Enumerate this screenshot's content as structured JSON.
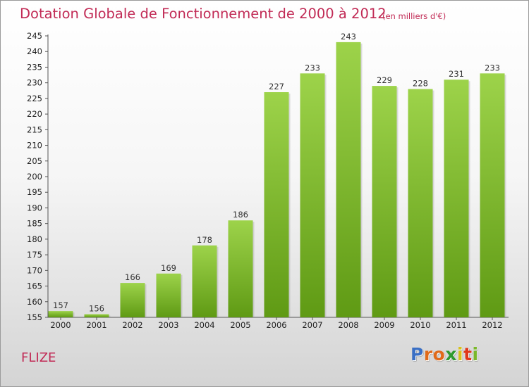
{
  "title": "Dotation Globale de Fonctionnement de 2000 à 2012",
  "subtitle": "(en milliers d'€)",
  "commune": "FLIZE",
  "logo": {
    "letters": [
      "P",
      "r",
      "o",
      "x",
      "i",
      "t",
      "i"
    ],
    "colors": [
      "#3a6fc4",
      "#e06a1a",
      "#e06a1a",
      "#2f9a2f",
      "#d8c21a",
      "#e0371a",
      "#7ab82a"
    ]
  },
  "colors": {
    "title": "#c12a55",
    "bar": "#8cc63f",
    "bar_dark": "#6a9f1f"
  },
  "chart_data": {
    "type": "bar",
    "categories": [
      "2000",
      "2001",
      "2002",
      "2003",
      "2004",
      "2005",
      "2006",
      "2007",
      "2008",
      "2009",
      "2010",
      "2011",
      "2012"
    ],
    "values": [
      157,
      156,
      166,
      169,
      178,
      186,
      227,
      233,
      243,
      229,
      228,
      231,
      233
    ],
    "ylim": [
      155,
      245
    ],
    "yticks": [
      155,
      160,
      165,
      170,
      175,
      180,
      185,
      190,
      195,
      200,
      205,
      210,
      215,
      220,
      225,
      230,
      235,
      240,
      245
    ],
    "grid": false,
    "legend": "none"
  }
}
